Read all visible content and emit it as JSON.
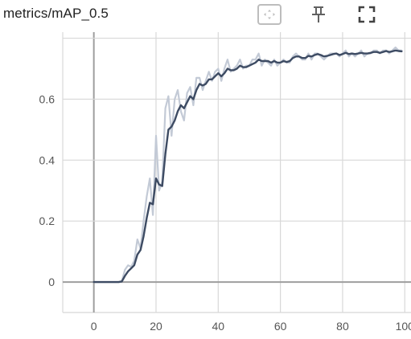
{
  "card": {
    "title": "metrics/mAP_0.5",
    "buttons": [
      {
        "name": "fit-domain-button",
        "icon": "fit-domain-icon"
      },
      {
        "name": "pin-button",
        "icon": "pin-icon"
      },
      {
        "name": "fullscreen-button",
        "icon": "fullscreen-icon"
      }
    ]
  },
  "colors": {
    "smoothed_line": "#3d4b63",
    "raw_line": "#c3cad6",
    "grid": "#d8d8d8",
    "zero_axis": "#9e9e9e",
    "tick_text": "#555555",
    "icon": "#616161",
    "icon_frame": "#bdbdbd"
  },
  "chart_data": {
    "type": "line",
    "title": "",
    "xlabel": "",
    "ylabel": "",
    "xlim": [
      -10,
      102
    ],
    "ylim": [
      -0.1,
      0.82
    ],
    "x_ticks": [
      0,
      20,
      40,
      60,
      80,
      100
    ],
    "x_tick_labels": [
      "0",
      "20",
      "40",
      "60",
      "80",
      "100"
    ],
    "y_ticks": [
      0,
      0.2,
      0.4,
      0.6
    ],
    "y_tick_labels": [
      "0",
      "0.2",
      "0.4",
      "0.6"
    ],
    "grid": true,
    "legend": "none",
    "series": [
      {
        "role": "raw",
        "x": [
          0,
          1,
          2,
          3,
          4,
          5,
          6,
          7,
          8,
          9,
          10,
          11,
          12,
          13,
          14,
          15,
          16,
          17,
          18,
          19,
          20,
          21,
          22,
          23,
          24,
          25,
          26,
          27,
          28,
          29,
          30,
          31,
          32,
          33,
          34,
          35,
          36,
          37,
          38,
          39,
          40,
          41,
          42,
          43,
          44,
          45,
          46,
          47,
          48,
          49,
          50,
          51,
          52,
          53,
          54,
          55,
          56,
          57,
          58,
          59,
          60,
          61,
          62,
          63,
          64,
          65,
          66,
          67,
          68,
          69,
          70,
          71,
          72,
          73,
          74,
          75,
          76,
          77,
          78,
          79,
          80,
          81,
          82,
          83,
          84,
          85,
          86,
          87,
          88,
          89,
          90,
          91,
          92,
          93,
          94,
          95,
          96,
          97,
          98,
          99
        ],
        "y": [
          0,
          0,
          0,
          0,
          0,
          0,
          0,
          0,
          0,
          0.003,
          0.04,
          0.055,
          0.05,
          0.07,
          0.14,
          0.11,
          0.2,
          0.28,
          0.34,
          0.22,
          0.48,
          0.3,
          0.33,
          0.57,
          0.61,
          0.48,
          0.6,
          0.63,
          0.56,
          0.53,
          0.62,
          0.64,
          0.58,
          0.67,
          0.67,
          0.63,
          0.66,
          0.69,
          0.66,
          0.69,
          0.7,
          0.66,
          0.7,
          0.73,
          0.69,
          0.7,
          0.71,
          0.73,
          0.7,
          0.71,
          0.71,
          0.73,
          0.73,
          0.75,
          0.71,
          0.73,
          0.72,
          0.71,
          0.73,
          0.71,
          0.72,
          0.73,
          0.72,
          0.72,
          0.74,
          0.75,
          0.74,
          0.73,
          0.73,
          0.75,
          0.73,
          0.75,
          0.75,
          0.74,
          0.73,
          0.74,
          0.75,
          0.75,
          0.75,
          0.74,
          0.75,
          0.76,
          0.74,
          0.75,
          0.74,
          0.75,
          0.76,
          0.74,
          0.75,
          0.75,
          0.76,
          0.76,
          0.75,
          0.76,
          0.76,
          0.75,
          0.76,
          0.77,
          0.76,
          0.76
        ]
      },
      {
        "role": "smoothed",
        "x": [
          0,
          1,
          2,
          3,
          4,
          5,
          6,
          7,
          8,
          9,
          10,
          11,
          12,
          13,
          14,
          15,
          16,
          17,
          18,
          19,
          20,
          21,
          22,
          23,
          24,
          25,
          26,
          27,
          28,
          29,
          30,
          31,
          32,
          33,
          34,
          35,
          36,
          37,
          38,
          39,
          40,
          41,
          42,
          43,
          44,
          45,
          46,
          47,
          48,
          49,
          50,
          51,
          52,
          53,
          54,
          55,
          56,
          57,
          58,
          59,
          60,
          61,
          62,
          63,
          64,
          65,
          66,
          67,
          68,
          69,
          70,
          71,
          72,
          73,
          74,
          75,
          76,
          77,
          78,
          79,
          80,
          81,
          82,
          83,
          84,
          85,
          86,
          87,
          88,
          89,
          90,
          91,
          92,
          93,
          94,
          95,
          96,
          97,
          98,
          99
        ],
        "y": [
          0,
          0,
          0,
          0,
          0,
          0,
          0,
          0,
          0,
          0.002,
          0.02,
          0.035,
          0.045,
          0.055,
          0.09,
          0.105,
          0.15,
          0.21,
          0.26,
          0.255,
          0.34,
          0.32,
          0.315,
          0.42,
          0.5,
          0.51,
          0.53,
          0.56,
          0.58,
          0.57,
          0.59,
          0.61,
          0.6,
          0.63,
          0.65,
          0.645,
          0.65,
          0.665,
          0.665,
          0.675,
          0.685,
          0.675,
          0.685,
          0.7,
          0.695,
          0.695,
          0.7,
          0.71,
          0.705,
          0.705,
          0.71,
          0.715,
          0.72,
          0.73,
          0.725,
          0.725,
          0.725,
          0.72,
          0.725,
          0.72,
          0.72,
          0.725,
          0.722,
          0.725,
          0.735,
          0.74,
          0.74,
          0.735,
          0.735,
          0.742,
          0.74,
          0.745,
          0.748,
          0.745,
          0.74,
          0.742,
          0.745,
          0.748,
          0.75,
          0.745,
          0.748,
          0.752,
          0.748,
          0.75,
          0.748,
          0.75,
          0.752,
          0.75,
          0.75,
          0.752,
          0.755,
          0.755,
          0.752,
          0.755,
          0.758,
          0.755,
          0.757,
          0.76,
          0.758,
          0.757
        ]
      }
    ]
  }
}
